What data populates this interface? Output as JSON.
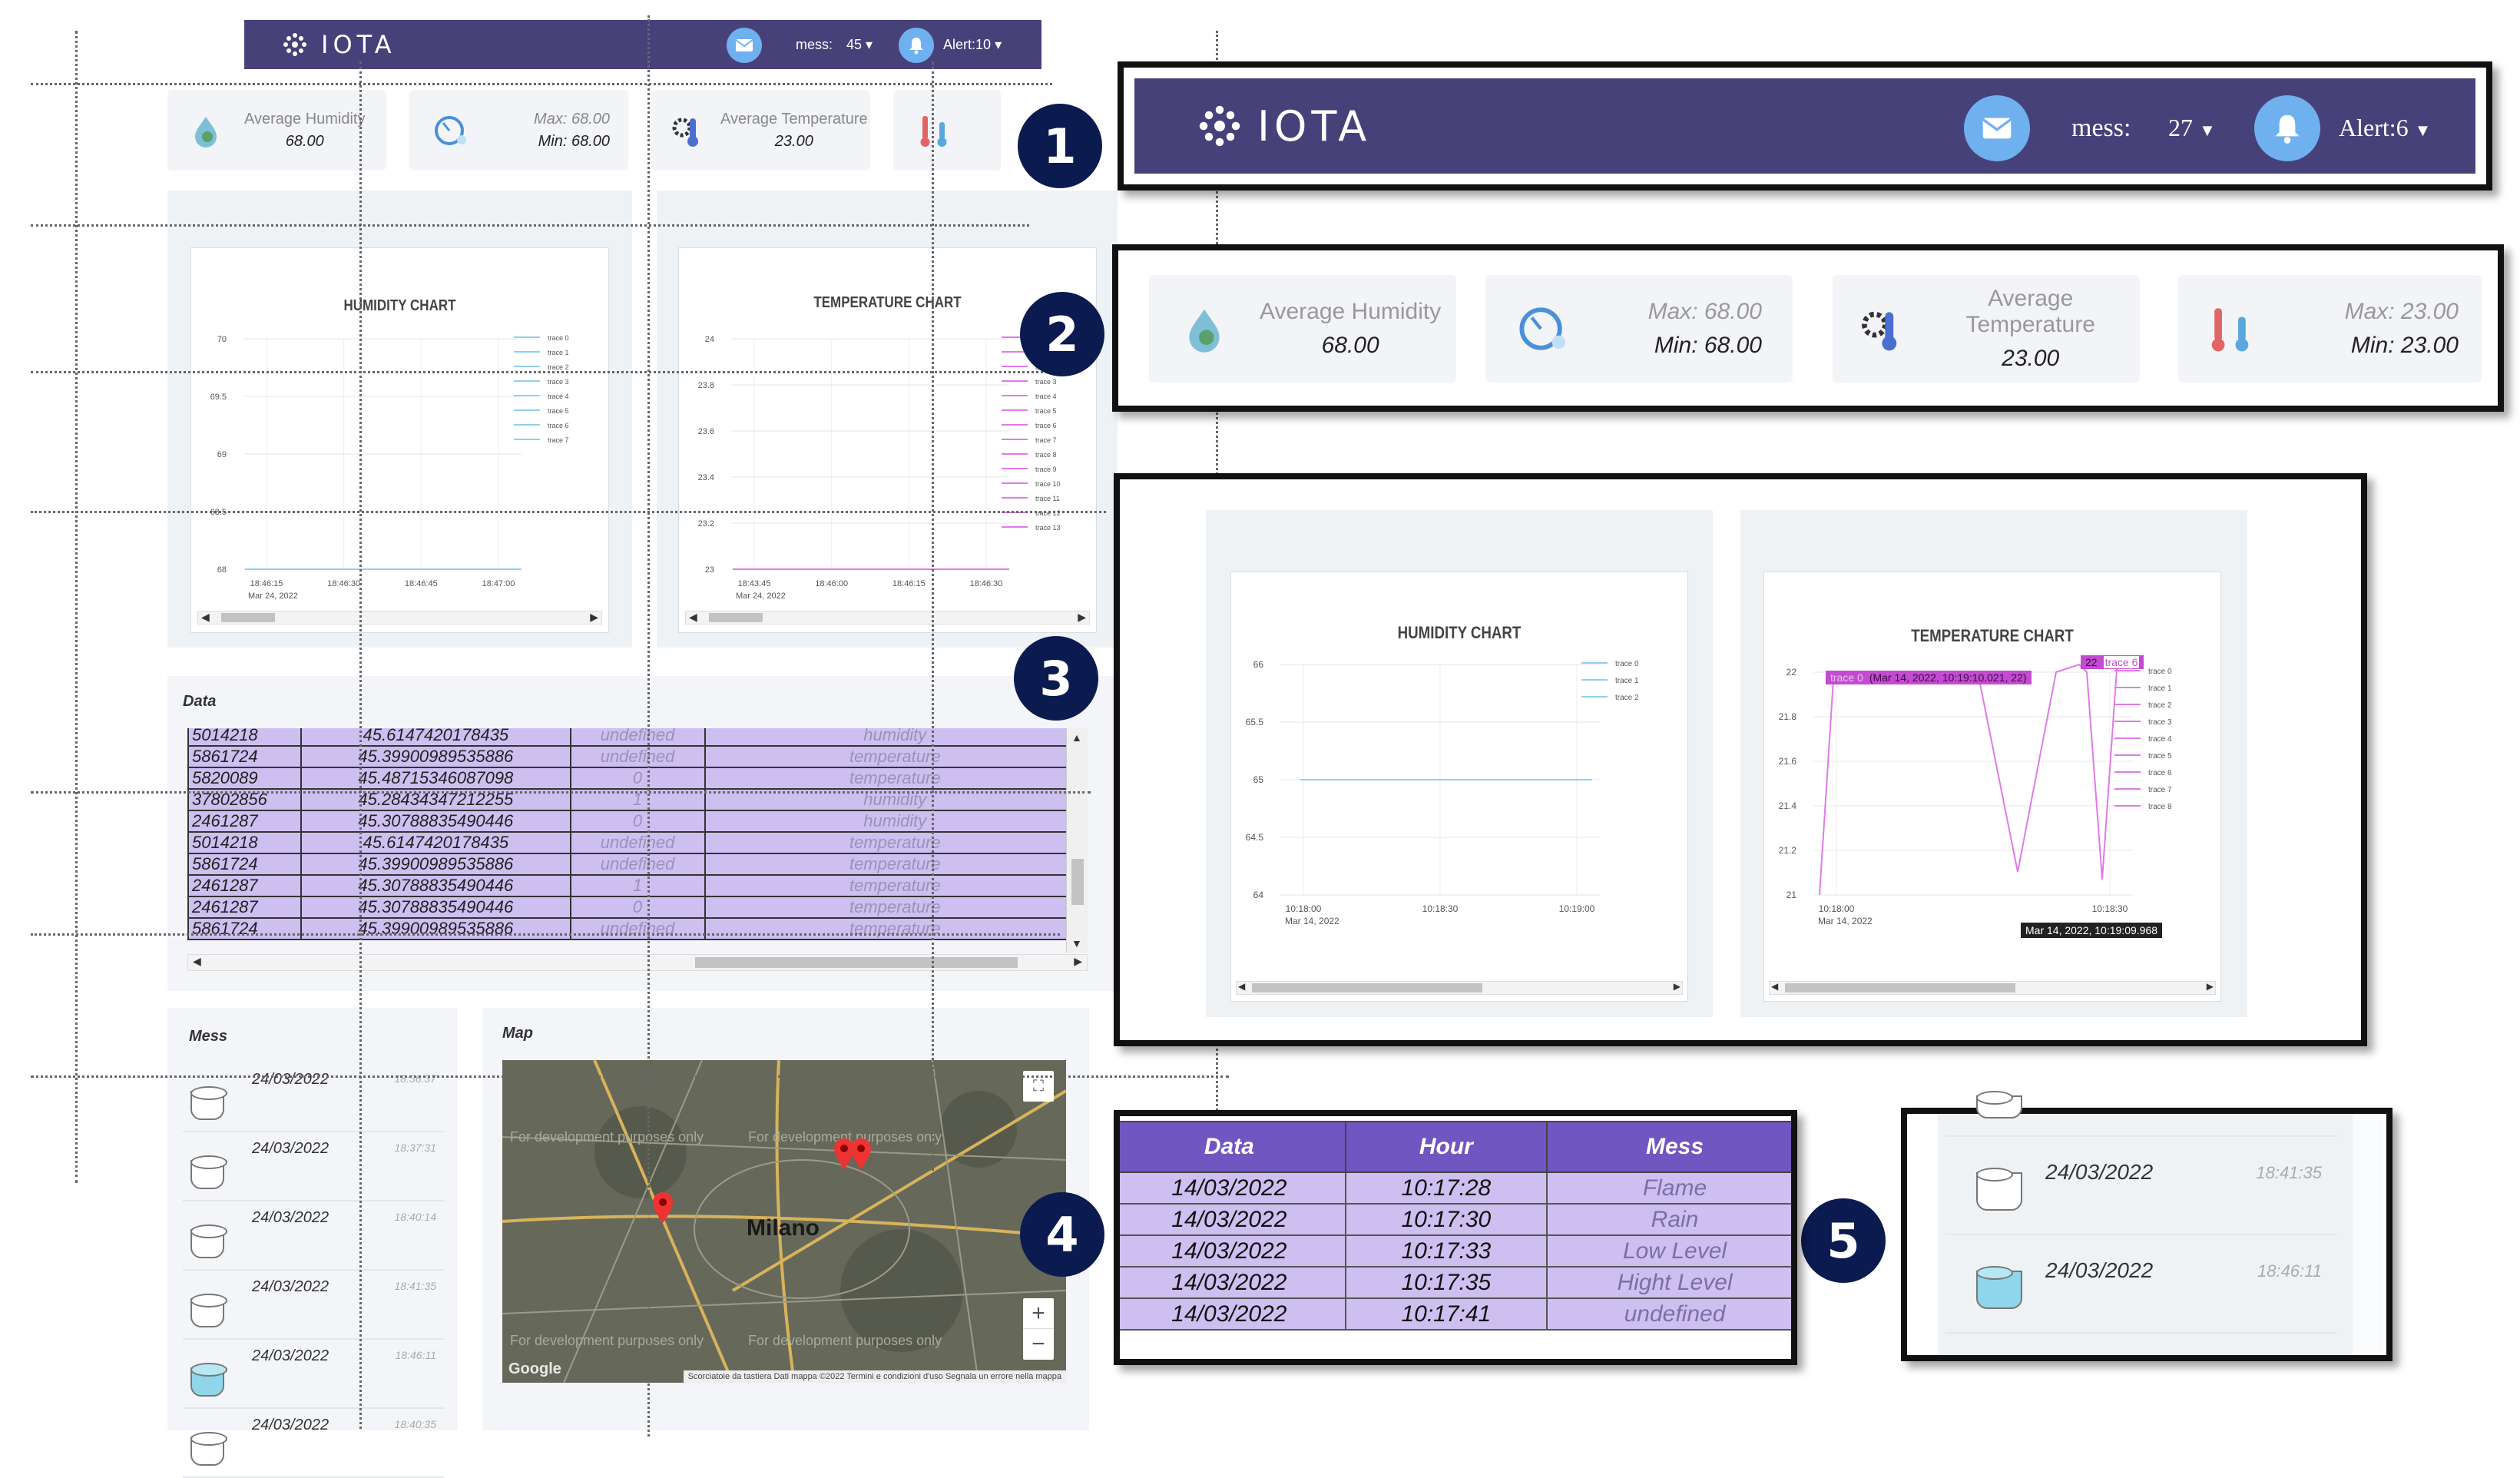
{
  "left": {
    "navbar": {
      "logo": "IOTA",
      "mess_label": "mess:",
      "mess_count": "45",
      "alert_label": "Alert:10"
    },
    "cards": [
      {
        "label": "Average Humidity",
        "value": "68.00"
      },
      {
        "max": "Max: 68.00",
        "min": "Min: 68.00"
      },
      {
        "label": "Average Temperature",
        "value": "23.00"
      }
    ],
    "humidity_chart": {
      "title": "HUMIDITY CHART",
      "yticks": [
        "70",
        "69.5",
        "69",
        "68.5",
        "68"
      ],
      "xticks": [
        "18:46:15",
        "18:46:30",
        "18:46:45",
        "18:47:00"
      ],
      "xdate": "Mar 24, 2022",
      "legend": [
        "trace 0",
        "trace 1",
        "trace 2",
        "trace 3",
        "trace 4",
        "trace 5",
        "trace 6",
        "trace 7"
      ]
    },
    "temperature_chart": {
      "title": "TEMPERATURE CHART",
      "yticks": [
        "24",
        "23.8",
        "23.6",
        "23.4",
        "23.2",
        "23"
      ],
      "xticks": [
        "18:43:45",
        "18:46:00",
        "18:46:15",
        "18:46:30"
      ],
      "xdate": "Mar 24, 2022",
      "legend": [
        "trace 0",
        "trace 1",
        "trace 2",
        "trace 3",
        "trace 4",
        "trace 5",
        "trace 6",
        "trace 7",
        "trace 8",
        "trace 9",
        "trace 10",
        "trace 11",
        "trace 12",
        "trace 13"
      ]
    },
    "data_table": {
      "title": "Data",
      "rows": [
        [
          "5014218",
          "45.6147420178435",
          "undefined",
          "humidity"
        ],
        [
          "5861724",
          "45.39900989535886",
          "undefined",
          "temperature"
        ],
        [
          "5820089",
          "45.48715346087098",
          "0",
          "temperature"
        ],
        [
          "37802856",
          "45.28434347212255",
          "1",
          "humidity"
        ],
        [
          "2461287",
          "45.30788835490446",
          "0",
          "humidity"
        ],
        [
          "5014218",
          "45.6147420178435",
          "undefined",
          "temperature"
        ],
        [
          "5861724",
          "45.39900989535886",
          "undefined",
          "temperature"
        ],
        [
          "2461287",
          "45.30788835490446",
          "1",
          "temperature"
        ],
        [
          "2461287",
          "45.30788835490446",
          "0",
          "temperature"
        ],
        [
          "5861724",
          "45.39900989535886",
          "undefined",
          "temperature"
        ]
      ]
    },
    "mess": {
      "title": "Mess",
      "items": [
        {
          "date": "24/03/2022",
          "time": "18:36:37",
          "full": false
        },
        {
          "date": "24/03/2022",
          "time": "18:37:31",
          "full": false
        },
        {
          "date": "24/03/2022",
          "time": "18:40:14",
          "full": false
        },
        {
          "date": "24/03/2022",
          "time": "18:41:35",
          "full": false
        },
        {
          "date": "24/03/2022",
          "time": "18:46:11",
          "full": true
        },
        {
          "date": "24/03/2022",
          "time": "18:40:35",
          "full": false
        }
      ]
    },
    "map": {
      "title": "Map",
      "city": "Milano",
      "watermark": "For development purposes only",
      "google": "Google",
      "zoom_in": "+",
      "zoom_out": "−",
      "footer": "Scorciatoie da tastiera   Dati mappa ©2022   Termini e condizioni d'uso   Segnala un errore nella mappa"
    }
  },
  "markers": [
    "1",
    "2",
    "3",
    "4",
    "5"
  ],
  "zoom1": {
    "logo": "IOTA",
    "mess_label": "mess:",
    "mess_count": "27",
    "alert_label": "Alert:6"
  },
  "zoom2": {
    "humidity_label": "Average Humidity",
    "humidity_value": "68.00",
    "hmax": "Max: 68.00",
    "hmin": "Min: 68.00",
    "temp_label": "Average Temperature",
    "temp_value": "23.00",
    "tmax": "Max: 23.00",
    "tmin": "Min: 23.00"
  },
  "zoom3": {
    "humidity": {
      "title": "HUMIDITY CHART",
      "yticks": [
        "66",
        "65.5",
        "65",
        "64.5",
        "64"
      ],
      "xticks": [
        "10:18:00",
        "10:18:30",
        "10:19:00"
      ],
      "xdate": "Mar 14, 2022",
      "legend": [
        "trace 0",
        "trace 1",
        "trace 2"
      ]
    },
    "temperature": {
      "title": "TEMPERATURE CHART",
      "yticks": [
        "22",
        "21.8",
        "21.6",
        "21.4",
        "21.2",
        "21"
      ],
      "xticks": [
        "10:18:00",
        "10:18:30"
      ],
      "xdate": "Mar 14, 2022",
      "legend": [
        "trace 0",
        "trace 1",
        "trace 2",
        "trace 3",
        "trace 4",
        "trace 5",
        "trace 6",
        "trace 7",
        "trace 8"
      ],
      "hover_top": "(Mar 14, 2022, 10:19:10.021, 22)",
      "hover_trace0": "trace 0",
      "hover_val": "22",
      "hover_trace6": "trace 6",
      "hover_bottom": "Mar 14, 2022, 10:19:09.968"
    }
  },
  "zoom4": {
    "headers": [
      "Data",
      "Hour",
      "Mess"
    ],
    "rows": [
      [
        "14/03/2022",
        "10:17:28",
        "Flame"
      ],
      [
        "14/03/2022",
        "10:17:30",
        "Rain"
      ],
      [
        "14/03/2022",
        "10:17:33",
        "Low Level"
      ],
      [
        "14/03/2022",
        "10:17:35",
        "Hight Level"
      ],
      [
        "14/03/2022",
        "10:17:41",
        "undefined"
      ]
    ]
  },
  "zoom5": {
    "items": [
      {
        "date": "24/03/2022",
        "time": "18:41:35",
        "full": false
      },
      {
        "date": "24/03/2022",
        "time": "18:46:11",
        "full": true
      }
    ]
  },
  "colors": {
    "navbar": "#47417a",
    "humidity_line": "#8fd0ee",
    "temperature_line": "#e07ae8",
    "table_row": "#cdbff0",
    "table_header": "#6f56c0",
    "marker": "#0b1a4f"
  }
}
